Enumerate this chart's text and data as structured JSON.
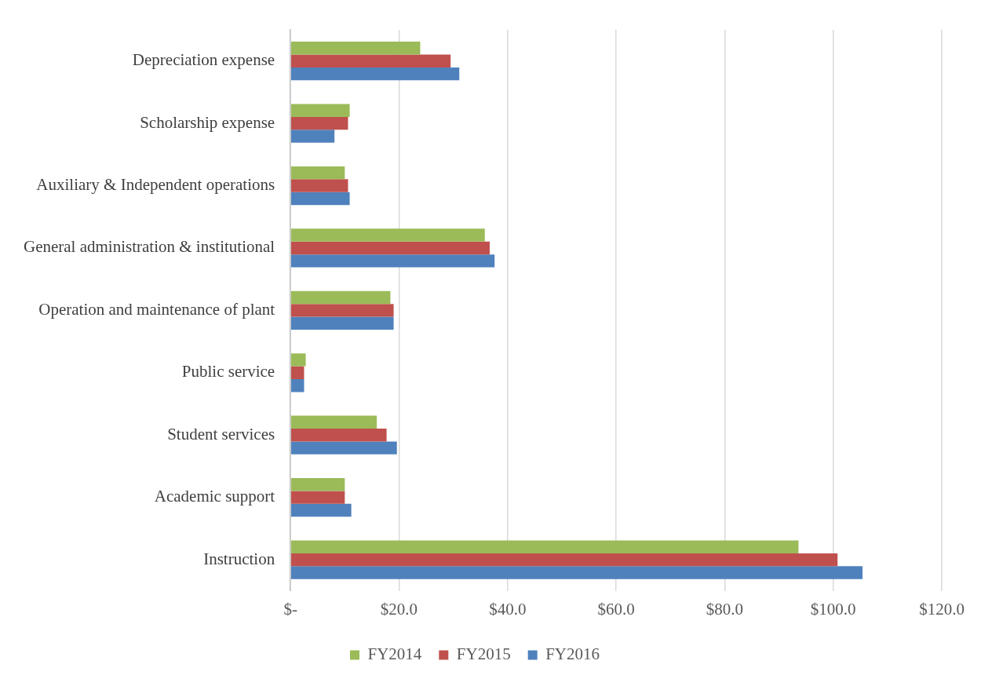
{
  "chart_data": {
    "type": "bar",
    "orientation": "horizontal",
    "categories": [
      "Depreciation expense",
      "Scholarship expense",
      "Auxiliary & Independent operations",
      "General administration & institutional",
      "Operation and maintenance of plant",
      "Public service",
      "Student services",
      "Academic support",
      "Instruction"
    ],
    "series": [
      {
        "name": "FY2014",
        "color": "#9bbb59",
        "values": [
          23.9,
          10.9,
          10.0,
          35.8,
          18.4,
          2.8,
          15.9,
          10.0,
          93.6
        ]
      },
      {
        "name": "FY2015",
        "color": "#c0504d",
        "values": [
          29.5,
          10.6,
          10.6,
          36.7,
          19.0,
          2.5,
          17.7,
          10.0,
          100.8
        ]
      },
      {
        "name": "FY2016",
        "color": "#4f81bd",
        "values": [
          31.1,
          8.1,
          10.9,
          37.6,
          19.0,
          2.5,
          19.6,
          11.2,
          105.4
        ]
      }
    ],
    "xlim": [
      0,
      120
    ],
    "xticks": [
      {
        "value": 0,
        "label": "$-"
      },
      {
        "value": 20,
        "label": "$20.0"
      },
      {
        "value": 40,
        "label": "$40.0"
      },
      {
        "value": 60,
        "label": "$60.0"
      },
      {
        "value": 80,
        "label": "$80.0"
      },
      {
        "value": 100,
        "label": "$100.0"
      },
      {
        "value": 120,
        "label": "$120.0"
      }
    ],
    "grid": "x",
    "legend": "bottom"
  }
}
